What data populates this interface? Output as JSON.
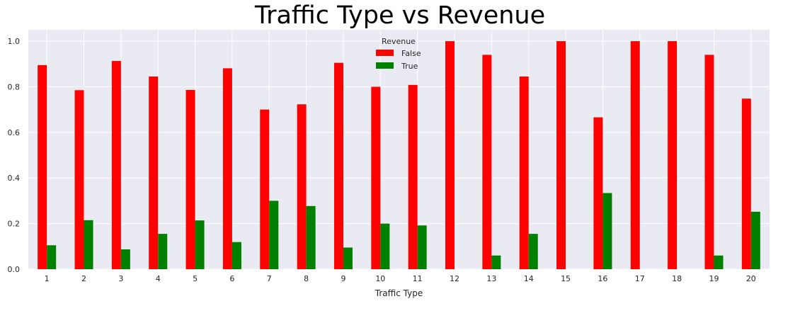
{
  "chart_data": {
    "type": "bar",
    "title": "Traffic Type vs Revenue",
    "xlabel": "Traffic Type",
    "ylabel": "",
    "ylim": [
      0,
      1.05
    ],
    "yticks": [
      "0.0",
      "0.2",
      "0.4",
      "0.6",
      "0.8",
      "1.0"
    ],
    "categories": [
      "1",
      "2",
      "3",
      "4",
      "5",
      "6",
      "7",
      "8",
      "9",
      "10",
      "11",
      "12",
      "13",
      "14",
      "15",
      "16",
      "17",
      "18",
      "19",
      "20"
    ],
    "series": [
      {
        "name": "False",
        "color": "#ff0000",
        "values": [
          0.895,
          0.785,
          0.913,
          0.845,
          0.786,
          0.881,
          0.7,
          0.723,
          0.905,
          0.8,
          0.808,
          1.0,
          0.94,
          0.845,
          1.0,
          0.666,
          1.0,
          1.0,
          0.94,
          0.748
        ]
      },
      {
        "name": "True",
        "color": "#008000",
        "values": [
          0.105,
          0.215,
          0.087,
          0.155,
          0.214,
          0.119,
          0.3,
          0.277,
          0.095,
          0.2,
          0.192,
          0.0,
          0.06,
          0.155,
          0.0,
          0.334,
          0.0,
          0.0,
          0.06,
          0.252
        ]
      }
    ],
    "legend": {
      "title": "Revenue",
      "placement": "top-center"
    },
    "grid": true,
    "background": "#eaeaf2"
  }
}
